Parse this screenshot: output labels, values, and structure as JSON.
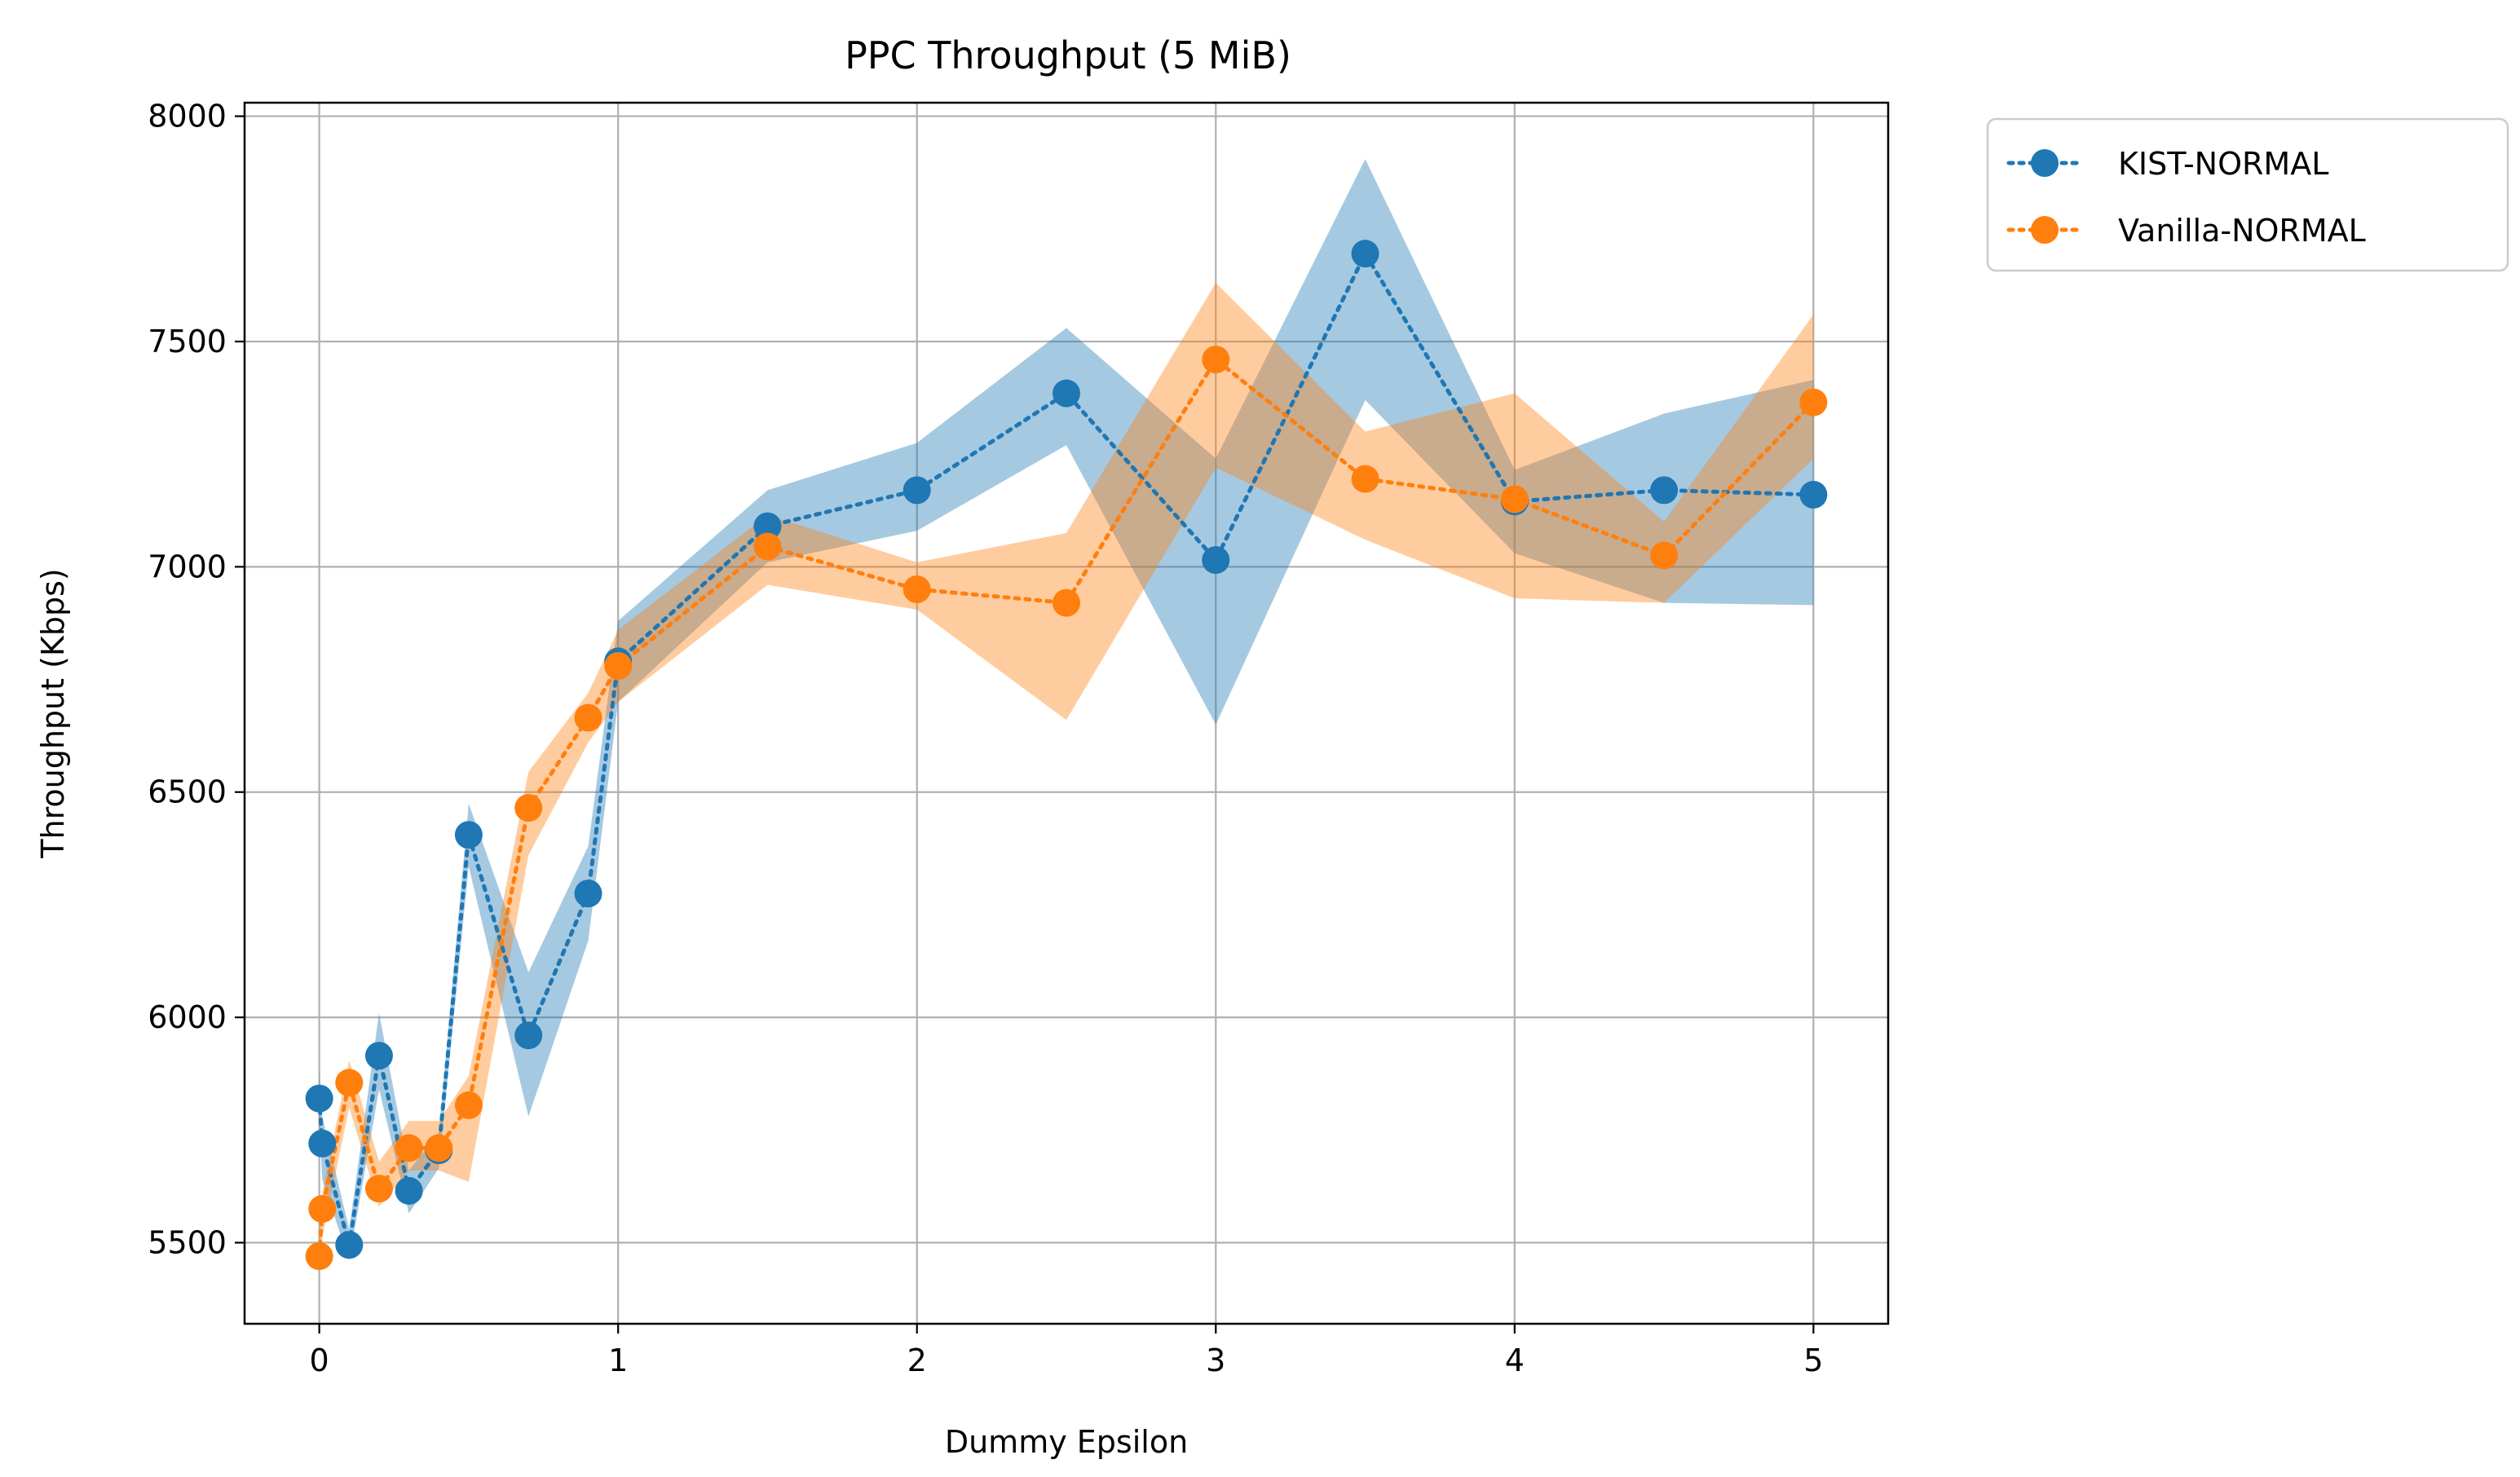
{
  "chart_data": {
    "type": "line",
    "title": "PPC Throughput (5 MiB)",
    "xlabel": "Dummy Epsilon",
    "ylabel": "Throughput (Kbps)",
    "xlim": [
      -0.25,
      5.25
    ],
    "ylim": [
      5320,
      8030
    ],
    "xticks": [
      0,
      1,
      2,
      3,
      4,
      5
    ],
    "xtick_labels": [
      "0",
      "1",
      "2",
      "3",
      "4",
      "5"
    ],
    "yticks": [
      5500,
      6000,
      6500,
      7000,
      7500,
      8000
    ],
    "ytick_labels": [
      "5500",
      "6000",
      "6500",
      "7000",
      "7500",
      "8000"
    ],
    "grid": true,
    "legend_position": "outside top-right",
    "x": [
      0,
      0.01,
      0.1,
      0.2,
      0.3,
      0.4,
      0.5,
      0.7,
      0.9,
      1,
      1.5,
      2,
      2.5,
      3,
      3.5,
      4,
      4.5,
      5
    ],
    "series": [
      {
        "name": "KIST-NORMAL",
        "color": "#1f77b4",
        "values": [
          5820,
          5720,
          5495,
          5915,
          5615,
          5705,
          6405,
          5960,
          6275,
          6790,
          7090,
          7170,
          7385,
          7015,
          7695,
          7145,
          7170,
          7160
        ],
        "lower": [
          5760,
          5640,
          5460,
          5840,
          5565,
          5665,
          6335,
          5780,
          6170,
          6700,
          7010,
          7080,
          7270,
          6650,
          7370,
          7030,
          6920,
          6915
        ],
        "upper": [
          5880,
          5780,
          5530,
          6010,
          5660,
          5745,
          6475,
          6100,
          6380,
          6880,
          7170,
          7275,
          7530,
          7240,
          7905,
          7215,
          7340,
          7415
        ]
      },
      {
        "name": "Vanilla-NORMAL",
        "color": "#ff7f0e",
        "values": [
          5470,
          5575,
          5855,
          5620,
          5710,
          5710,
          5805,
          6465,
          6665,
          6780,
          7045,
          6950,
          6920,
          7460,
          7195,
          7150,
          7025,
          7365
        ],
        "lower": [
          5430,
          5510,
          5800,
          5580,
          5660,
          5660,
          5635,
          6360,
          6610,
          6700,
          6960,
          6905,
          6660,
          7220,
          7060,
          6930,
          6920,
          7240
        ],
        "upper": [
          5515,
          5610,
          5905,
          5680,
          5770,
          5770,
          5870,
          6545,
          6720,
          6860,
          7115,
          7010,
          7075,
          7630,
          7300,
          7385,
          7100,
          7560
        ]
      }
    ]
  }
}
